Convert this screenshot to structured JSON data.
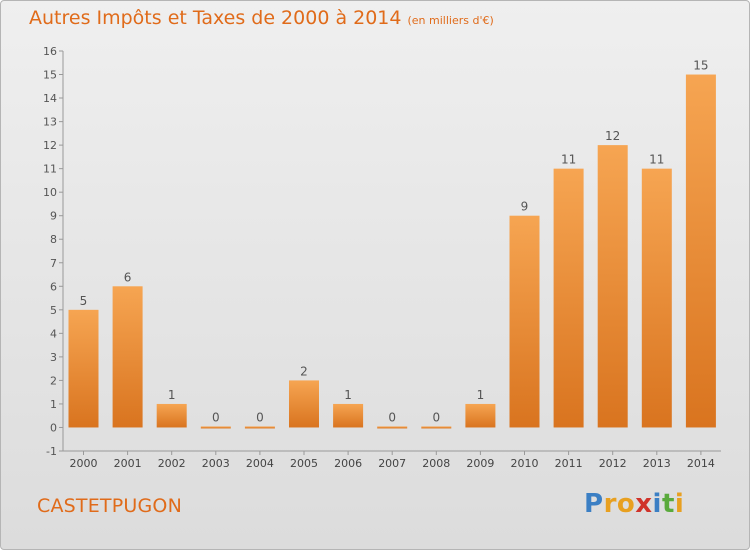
{
  "title": "Autres Impôts et Taxes de 2000 à 2014",
  "subtitle": "(en milliers d'€)",
  "commune": "CASTETPUGON",
  "logo": {
    "letters": [
      "P",
      "r",
      "o",
      "x",
      "i",
      "t",
      "i"
    ],
    "colors": [
      "#3b7fc4",
      "#e8a020",
      "#e8a020",
      "#d0332a",
      "#3b7fc4",
      "#5aaa3c",
      "#e8a020"
    ]
  },
  "colors": {
    "bar_light": "#f6a552",
    "bar_dark": "#d9741f",
    "accent": "#e06b1a"
  },
  "chart_data": {
    "type": "bar",
    "categories": [
      "2000",
      "2001",
      "2002",
      "2003",
      "2004",
      "2005",
      "2006",
      "2007",
      "2008",
      "2009",
      "2010",
      "2011",
      "2012",
      "2013",
      "2014"
    ],
    "values": [
      5,
      6,
      1,
      0,
      0,
      2,
      1,
      0,
      0,
      1,
      9,
      11,
      12,
      11,
      15
    ],
    "ylim": [
      -1,
      16
    ],
    "yticks": [
      -1,
      0,
      1,
      2,
      3,
      4,
      5,
      6,
      7,
      8,
      9,
      10,
      11,
      12,
      13,
      14,
      15,
      16
    ],
    "grid": false
  }
}
